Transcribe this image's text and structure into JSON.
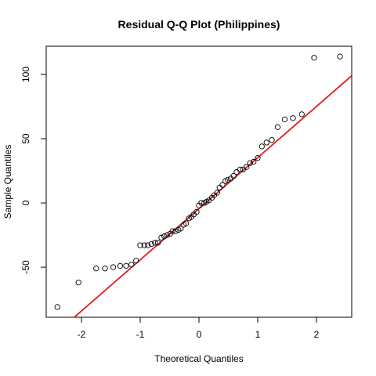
{
  "chart_data": {
    "type": "scatter",
    "title": "Residual Q-Q Plot (Philippines)",
    "xlabel": "Theoretical Quantiles",
    "ylabel": "Sample Quantiles",
    "xlim": [
      -2.6,
      2.6
    ],
    "ylim": [
      -89,
      122
    ],
    "xticks": [
      -2,
      -1,
      0,
      1,
      2
    ],
    "yticks": [
      -50,
      0,
      50,
      100
    ],
    "grid": false,
    "reference_line": {
      "color": "#e31a1c",
      "x": [
        -2.6,
        2.6
      ],
      "y": [
        -108,
        99
      ]
    },
    "point_style": {
      "shape": "open-circle",
      "color": "#000000"
    },
    "points": [
      [
        -2.41,
        -81
      ],
      [
        -2.05,
        -62
      ],
      [
        -1.75,
        -51
      ],
      [
        -1.6,
        -51
      ],
      [
        -1.46,
        -50
      ],
      [
        -1.34,
        -49
      ],
      [
        -1.24,
        -49
      ],
      [
        -1.15,
        -48
      ],
      [
        -1.07,
        -45
      ],
      [
        -1.0,
        -33
      ],
      [
        -0.93,
        -33
      ],
      [
        -0.87,
        -33
      ],
      [
        -0.81,
        -32
      ],
      [
        -0.75,
        -31
      ],
      [
        -0.7,
        -31
      ],
      [
        -0.64,
        -27
      ],
      [
        -0.59,
        -26
      ],
      [
        -0.54,
        -25
      ],
      [
        -0.49,
        -24
      ],
      [
        -0.45,
        -22
      ],
      [
        -0.4,
        -22
      ],
      [
        -0.35,
        -21
      ],
      [
        -0.31,
        -20
      ],
      [
        -0.26,
        -17
      ],
      [
        -0.22,
        -16
      ],
      [
        -0.17,
        -12
      ],
      [
        -0.13,
        -11
      ],
      [
        -0.09,
        -9
      ],
      [
        -0.04,
        -7
      ],
      [
        0.0,
        -2
      ],
      [
        0.04,
        0
      ],
      [
        0.09,
        0
      ],
      [
        0.13,
        1
      ],
      [
        0.17,
        2
      ],
      [
        0.22,
        4
      ],
      [
        0.26,
        6
      ],
      [
        0.31,
        8
      ],
      [
        0.35,
        12
      ],
      [
        0.4,
        14
      ],
      [
        0.45,
        17
      ],
      [
        0.49,
        18
      ],
      [
        0.54,
        19
      ],
      [
        0.59,
        21
      ],
      [
        0.64,
        24
      ],
      [
        0.7,
        26
      ],
      [
        0.75,
        26
      ],
      [
        0.81,
        28
      ],
      [
        0.87,
        31
      ],
      [
        0.93,
        32
      ],
      [
        1.0,
        35
      ],
      [
        1.07,
        44
      ],
      [
        1.15,
        47
      ],
      [
        1.24,
        49
      ],
      [
        1.34,
        59
      ],
      [
        1.46,
        65
      ],
      [
        1.6,
        66
      ],
      [
        1.75,
        69
      ],
      [
        1.96,
        113
      ],
      [
        2.4,
        114
      ]
    ]
  }
}
